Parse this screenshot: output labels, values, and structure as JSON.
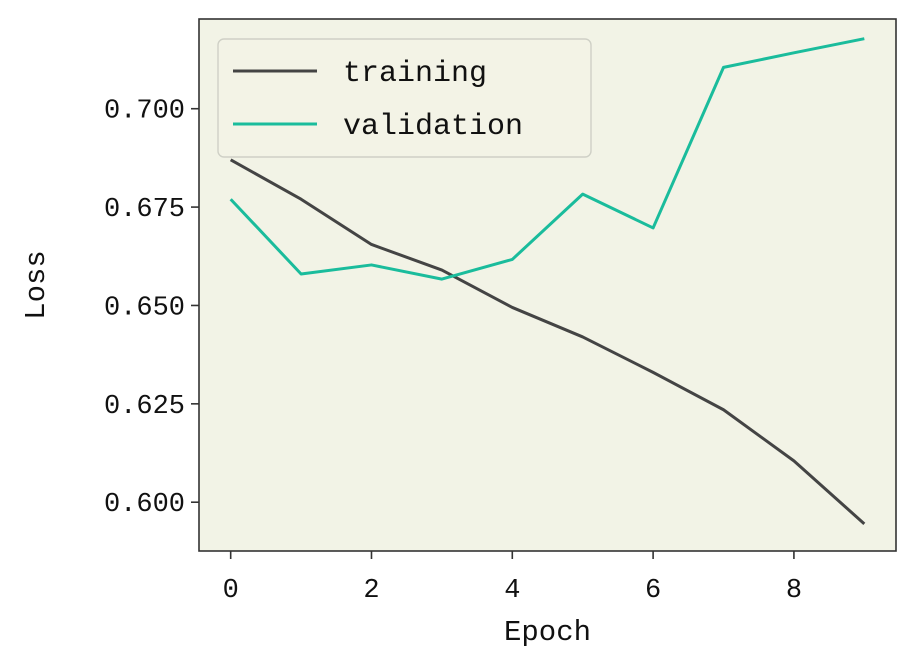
{
  "chart_data": {
    "type": "line",
    "xlabel": "Epoch",
    "ylabel": "Loss",
    "xlim": [
      -0.45,
      9.45
    ],
    "ylim": [
      0.5876,
      0.7228
    ],
    "x": [
      0,
      1,
      2,
      3,
      4,
      5,
      6,
      7,
      8,
      9
    ],
    "xticks": [
      0,
      2,
      4,
      6,
      8
    ],
    "yticks": [
      0.6,
      0.625,
      0.65,
      0.675,
      0.7
    ],
    "ytick_labels": [
      "0.600",
      "0.625",
      "0.650",
      "0.675",
      "0.700"
    ],
    "grid": false,
    "legend_position": "top-left",
    "background": "#f2f3e6",
    "series": [
      {
        "name": "training",
        "color": "#444444",
        "values": [
          0.687,
          0.677,
          0.6655,
          0.659,
          0.6495,
          0.642,
          0.633,
          0.6235,
          0.6105,
          0.5945
        ]
      },
      {
        "name": "validation",
        "color": "#1abc9c",
        "values": [
          0.677,
          0.658,
          0.6603,
          0.6567,
          0.6617,
          0.6783,
          0.6697,
          0.7105,
          0.7142,
          0.7178
        ]
      }
    ]
  }
}
